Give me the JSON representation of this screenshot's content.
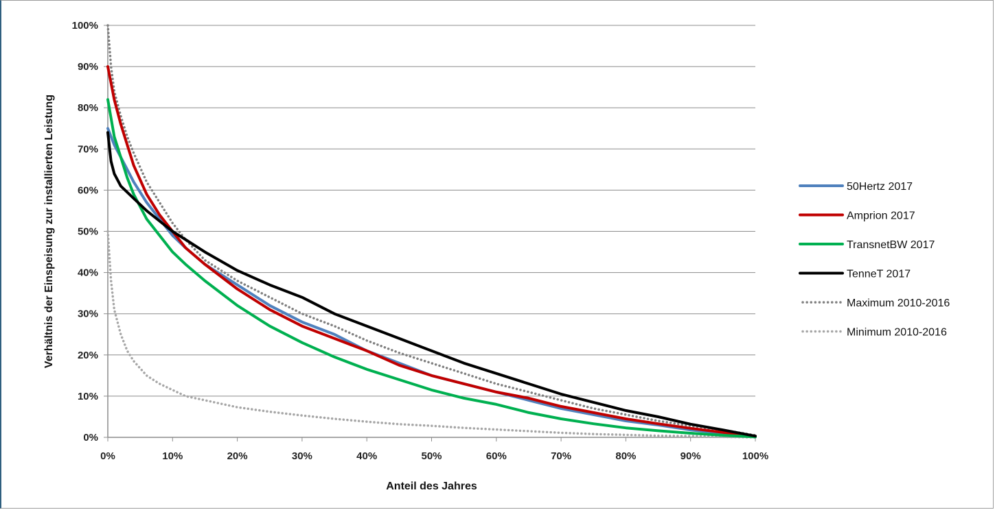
{
  "chart_data": {
    "type": "line",
    "xlabel": "Anteil des Jahres",
    "ylabel": "Verhältnis der Einspeisung  zur installierten Leistung",
    "xlim": [
      0,
      100
    ],
    "ylim": [
      0,
      100
    ],
    "x_ticks": [
      "0%",
      "10%",
      "20%",
      "30%",
      "40%",
      "50%",
      "60%",
      "70%",
      "80%",
      "90%",
      "100%"
    ],
    "y_ticks": [
      "0%",
      "10%",
      "20%",
      "30%",
      "40%",
      "50%",
      "60%",
      "70%",
      "80%",
      "90%",
      "100%"
    ],
    "grid": "horizontal",
    "legend_position": "right",
    "series": [
      {
        "name": "50Hertz 2017",
        "color": "#4f81bd",
        "style": "solid",
        "points": [
          [
            0,
            75
          ],
          [
            1,
            71
          ],
          [
            2,
            68
          ],
          [
            3,
            65
          ],
          [
            4,
            62
          ],
          [
            6,
            57
          ],
          [
            8,
            53
          ],
          [
            10,
            49
          ],
          [
            12,
            46
          ],
          [
            15,
            42
          ],
          [
            20,
            37
          ],
          [
            25,
            32
          ],
          [
            30,
            28
          ],
          [
            35,
            25
          ],
          [
            40,
            21
          ],
          [
            45,
            18
          ],
          [
            50,
            15
          ],
          [
            55,
            13
          ],
          [
            60,
            11
          ],
          [
            65,
            9
          ],
          [
            70,
            7
          ],
          [
            75,
            5.5
          ],
          [
            80,
            4
          ],
          [
            85,
            3
          ],
          [
            90,
            1.8
          ],
          [
            95,
            1
          ],
          [
            100,
            0.3
          ]
        ]
      },
      {
        "name": "Amprion 2017",
        "color": "#c00000",
        "style": "solid",
        "points": [
          [
            0,
            90
          ],
          [
            1,
            82
          ],
          [
            2,
            76
          ],
          [
            3,
            71
          ],
          [
            4,
            66
          ],
          [
            6,
            59
          ],
          [
            8,
            54
          ],
          [
            10,
            50
          ],
          [
            12,
            46
          ],
          [
            15,
            42
          ],
          [
            20,
            36
          ],
          [
            25,
            31
          ],
          [
            30,
            27
          ],
          [
            35,
            24
          ],
          [
            40,
            21
          ],
          [
            45,
            17.5
          ],
          [
            50,
            15
          ],
          [
            55,
            13
          ],
          [
            60,
            11
          ],
          [
            65,
            9.5
          ],
          [
            70,
            7.5
          ],
          [
            75,
            6
          ],
          [
            80,
            4.5
          ],
          [
            85,
            3.3
          ],
          [
            90,
            2.2
          ],
          [
            95,
            1.2
          ],
          [
            100,
            0.3
          ]
        ]
      },
      {
        "name": "TransnetBW 2017",
        "color": "#00b050",
        "style": "solid",
        "points": [
          [
            0,
            82
          ],
          [
            1,
            73
          ],
          [
            2,
            68
          ],
          [
            3,
            63
          ],
          [
            4,
            59
          ],
          [
            6,
            53
          ],
          [
            8,
            49
          ],
          [
            10,
            45
          ],
          [
            12,
            42
          ],
          [
            15,
            38
          ],
          [
            20,
            32
          ],
          [
            25,
            27
          ],
          [
            30,
            23
          ],
          [
            35,
            19.5
          ],
          [
            40,
            16.5
          ],
          [
            45,
            14
          ],
          [
            50,
            11.5
          ],
          [
            55,
            9.5
          ],
          [
            60,
            8
          ],
          [
            65,
            6
          ],
          [
            70,
            4.5
          ],
          [
            75,
            3.3
          ],
          [
            80,
            2.3
          ],
          [
            85,
            1.6
          ],
          [
            90,
            1
          ],
          [
            95,
            0.5
          ],
          [
            100,
            0.1
          ]
        ]
      },
      {
        "name": "TenneT 2017",
        "color": "#000000",
        "style": "solid",
        "points": [
          [
            0,
            74
          ],
          [
            0.5,
            67
          ],
          [
            1,
            64
          ],
          [
            2,
            61
          ],
          [
            4,
            58
          ],
          [
            6,
            55
          ],
          [
            8,
            52.5
          ],
          [
            10,
            50
          ],
          [
            12,
            48
          ],
          [
            15,
            45
          ],
          [
            20,
            40.5
          ],
          [
            25,
            37
          ],
          [
            30,
            34
          ],
          [
            35,
            30
          ],
          [
            40,
            27
          ],
          [
            45,
            24
          ],
          [
            50,
            21
          ],
          [
            55,
            18
          ],
          [
            60,
            15.5
          ],
          [
            65,
            13
          ],
          [
            70,
            10.5
          ],
          [
            75,
            8.5
          ],
          [
            80,
            6.5
          ],
          [
            85,
            5
          ],
          [
            90,
            3.2
          ],
          [
            95,
            1.8
          ],
          [
            100,
            0.3
          ]
        ]
      },
      {
        "name": "Maximum 2010-2016",
        "color": "#7f7f7f",
        "style": "dotted",
        "points": [
          [
            0,
            100
          ],
          [
            0.5,
            90
          ],
          [
            1,
            84
          ],
          [
            2,
            78
          ],
          [
            3,
            73
          ],
          [
            4,
            69
          ],
          [
            6,
            62
          ],
          [
            8,
            57
          ],
          [
            10,
            52
          ],
          [
            12,
            48
          ],
          [
            15,
            43
          ],
          [
            20,
            38
          ],
          [
            25,
            34
          ],
          [
            30,
            30
          ],
          [
            35,
            27
          ],
          [
            40,
            23.5
          ],
          [
            45,
            20.5
          ],
          [
            50,
            18
          ],
          [
            55,
            15.5
          ],
          [
            60,
            13
          ],
          [
            65,
            11
          ],
          [
            70,
            9
          ],
          [
            75,
            7
          ],
          [
            80,
            5.5
          ],
          [
            85,
            4
          ],
          [
            90,
            2.8
          ],
          [
            95,
            1.8
          ],
          [
            100,
            0.5
          ]
        ]
      },
      {
        "name": "Minimum 2010-2016",
        "color": "#a6a6a6",
        "style": "dotted",
        "points": [
          [
            0,
            50
          ],
          [
            0.5,
            38
          ],
          [
            1,
            31
          ],
          [
            2,
            25
          ],
          [
            3,
            21
          ],
          [
            4,
            18.5
          ],
          [
            6,
            15
          ],
          [
            8,
            13
          ],
          [
            10,
            11.5
          ],
          [
            12,
            10
          ],
          [
            15,
            9
          ],
          [
            20,
            7.3
          ],
          [
            25,
            6.2
          ],
          [
            30,
            5.3
          ],
          [
            35,
            4.5
          ],
          [
            40,
            3.8
          ],
          [
            45,
            3.2
          ],
          [
            50,
            2.8
          ],
          [
            55,
            2.3
          ],
          [
            60,
            1.9
          ],
          [
            65,
            1.5
          ],
          [
            70,
            1.1
          ],
          [
            75,
            0.8
          ],
          [
            80,
            0.6
          ],
          [
            85,
            0.4
          ],
          [
            90,
            0.3
          ],
          [
            95,
            0.1
          ],
          [
            100,
            0
          ]
        ]
      }
    ]
  }
}
